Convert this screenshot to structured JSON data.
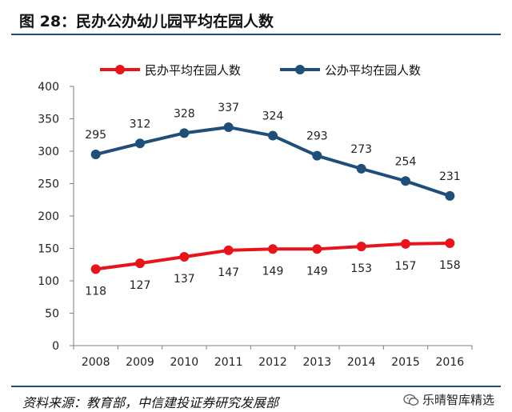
{
  "header": {
    "title": "图 28：民办公办幼儿园平均在园人数"
  },
  "footer": {
    "source": "资料来源：教育部，中信建投证券研究发展部",
    "watermark": "乐晴智库精选"
  },
  "colors": {
    "private": "#e8141c",
    "public": "#1f4e79",
    "axis": "#7f7f7f",
    "text": "#222222"
  },
  "chart_data": {
    "type": "line",
    "title": "",
    "xlabel": "",
    "ylabel": "",
    "categories": [
      "2008",
      "2009",
      "2010",
      "2011",
      "2012",
      "2013",
      "2014",
      "2015",
      "2016"
    ],
    "ylim": [
      0,
      400
    ],
    "yticks": [
      0,
      50,
      100,
      150,
      200,
      250,
      300,
      350,
      400
    ],
    "grid": false,
    "legend_position": "top",
    "series": [
      {
        "name": "民办平均在园人数",
        "color": "#e8141c",
        "label_position": "below",
        "values": [
          118,
          127,
          137,
          147,
          149,
          149,
          153,
          157,
          158
        ]
      },
      {
        "name": "公办平均在园人数",
        "color": "#1f4e79",
        "label_position": "above",
        "values": [
          295,
          312,
          328,
          337,
          324,
          293,
          273,
          254,
          231
        ]
      }
    ]
  }
}
